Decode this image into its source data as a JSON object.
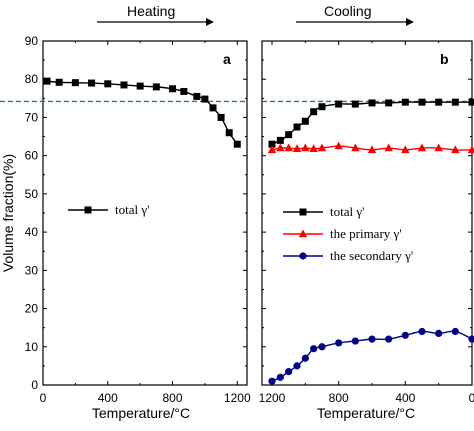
{
  "chart_data": [
    {
      "type": "line",
      "panel": "a",
      "phase_label": "Heating",
      "xlabel": "Temperature/°C",
      "ylabel": "Volume fraction(%)",
      "xlim": [
        0,
        1260
      ],
      "ylim": [
        0,
        90
      ],
      "x_ticks": [
        "0",
        "400",
        "800",
        "1200"
      ],
      "y_ticks": [
        "0",
        "10",
        "20",
        "30",
        "40",
        "50",
        "60",
        "70",
        "80",
        "90"
      ],
      "reference_line": {
        "y": 74.2,
        "color": "#2e8b22",
        "style": "dashed"
      },
      "legend_placement": "middle-left",
      "series": [
        {
          "name": "total γ'",
          "color": "#000000",
          "marker": "square",
          "x": [
            25,
            100,
            200,
            300,
            400,
            500,
            600,
            700,
            800,
            870,
            950,
            1000,
            1050,
            1100,
            1150,
            1200
          ],
          "y": [
            79.5,
            79.2,
            79.1,
            79.0,
            78.8,
            78.5,
            78.2,
            78.0,
            77.5,
            76.8,
            75.5,
            74.8,
            72.5,
            70.0,
            66.0,
            63.0
          ]
        }
      ]
    },
    {
      "type": "line",
      "panel": "b",
      "phase_label": "Cooling",
      "xlabel": "Temperature/°C",
      "ylabel": "",
      "xlim": [
        1260,
        0
      ],
      "ylim": [
        0,
        90
      ],
      "x_ticks": [
        "1200",
        "800",
        "400",
        "0"
      ],
      "reference_line": {
        "y": 74.2,
        "color": "#2e8b22",
        "style": "dashed"
      },
      "legend_placement": "center-left",
      "series": [
        {
          "name": "total γ'",
          "color": "#000000",
          "marker": "square",
          "x": [
            1200,
            1150,
            1100,
            1050,
            1000,
            950,
            900,
            800,
            700,
            600,
            500,
            400,
            300,
            200,
            100,
            0
          ],
          "y": [
            63.0,
            64.0,
            65.5,
            67.5,
            69.0,
            71.5,
            72.8,
            73.5,
            73.5,
            73.8,
            73.8,
            74.0,
            74.0,
            74.0,
            74.0,
            74.0
          ]
        },
        {
          "name": "the primary γ'",
          "color": "#ff0000",
          "marker": "triangle",
          "x": [
            1200,
            1150,
            1100,
            1050,
            1000,
            950,
            900,
            800,
            700,
            600,
            500,
            400,
            300,
            200,
            100,
            0
          ],
          "y": [
            61.5,
            62.0,
            62.0,
            61.8,
            62.0,
            61.8,
            62.0,
            62.5,
            62.0,
            61.5,
            62.0,
            61.5,
            62.0,
            62.0,
            61.5,
            61.5
          ]
        },
        {
          "name": "the secondary γ'",
          "color": "#00008b",
          "marker": "circle",
          "x": [
            1200,
            1150,
            1100,
            1050,
            1000,
            950,
            900,
            800,
            700,
            600,
            500,
            400,
            300,
            200,
            100,
            0
          ],
          "y": [
            1.0,
            2.0,
            3.5,
            5.0,
            7.0,
            9.5,
            10.0,
            11.0,
            11.5,
            12.0,
            12.0,
            13.0,
            14.0,
            13.5,
            14.0,
            12.0
          ]
        }
      ]
    }
  ]
}
